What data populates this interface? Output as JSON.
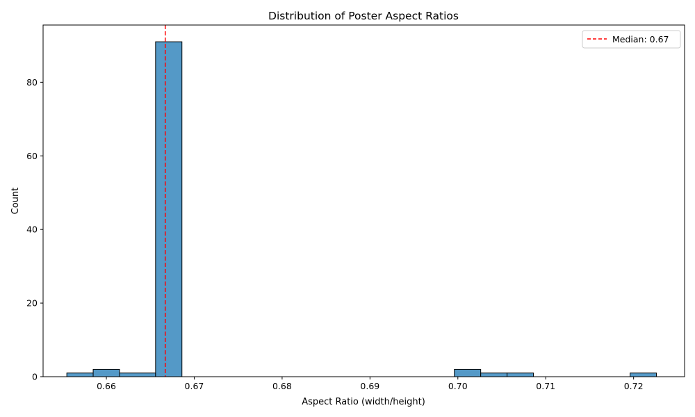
{
  "chart_data": {
    "type": "bar",
    "title": "Distribution of Poster Aspect Ratios",
    "xlabel": "Aspect Ratio (width/height)",
    "ylabel": "Count",
    "xlim": [
      0.6528,
      0.7258
    ],
    "ylim": [
      0,
      95.55
    ],
    "xticks": [
      0.66,
      0.67,
      0.68,
      0.69,
      0.7,
      0.71,
      0.72
    ],
    "xtick_labels": [
      "0.66",
      "0.67",
      "0.68",
      "0.69",
      "0.70",
      "0.71",
      "0.72"
    ],
    "yticks": [
      0,
      20,
      40,
      60,
      80
    ],
    "ytick_labels": [
      "0",
      "20",
      "40",
      "60",
      "80"
    ],
    "bins": [
      {
        "x0": 0.6555,
        "x1": 0.6585,
        "count": 1
      },
      {
        "x0": 0.6585,
        "x1": 0.6615,
        "count": 2
      },
      {
        "x0": 0.6615,
        "x1": 0.6656,
        "count": 1
      },
      {
        "x0": 0.6656,
        "x1": 0.6686,
        "count": 91
      },
      {
        "x0": 0.6996,
        "x1": 0.7026,
        "count": 2
      },
      {
        "x0": 0.7026,
        "x1": 0.7056,
        "count": 1
      },
      {
        "x0": 0.7056,
        "x1": 0.7086,
        "count": 1
      },
      {
        "x0": 0.7196,
        "x1": 0.7226,
        "count": 1
      }
    ],
    "median": {
      "value": 0.6667,
      "label": "Median: 0.67",
      "color": "#ff0000"
    },
    "bar_color": "#5499c7",
    "bar_edge_color": "#000000",
    "legend_position": "top-right",
    "grid": false
  }
}
